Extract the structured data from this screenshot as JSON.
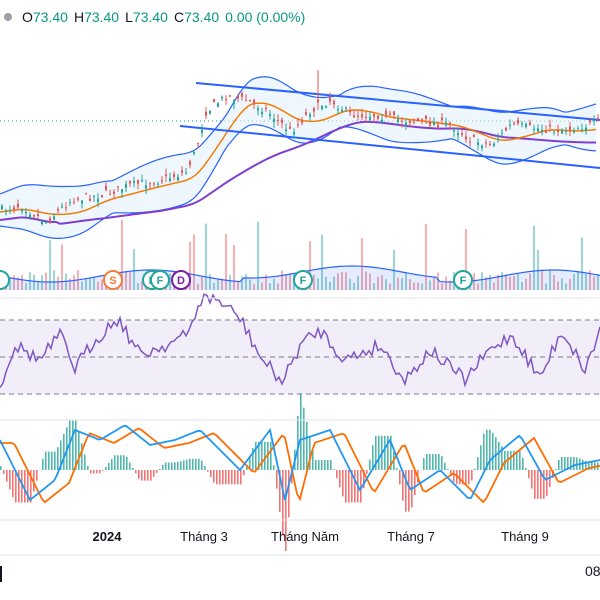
{
  "ohlc": {
    "open_label": "O",
    "open": "73.40",
    "high_label": "H",
    "high": "73.40",
    "low_label": "L",
    "low": "73.40",
    "close_label": "C",
    "close": "73.40",
    "change": "0.00 (0.00%)",
    "up_color": "#089981"
  },
  "x_axis": {
    "ticks": [
      "2024",
      "Tháng 3",
      "Tháng Năm",
      "Tháng 7",
      "Tháng 9"
    ],
    "bold_tick": "2024"
  },
  "crosshair_date_partial": "08",
  "event_markers": [
    {
      "letter": "S",
      "color": "#f57c3a"
    },
    {
      "letter": "F",
      "color": "#26a69a"
    },
    {
      "letter": "F",
      "color": "#26a69a"
    },
    {
      "letter": "D",
      "color": "#7b1fa2"
    },
    {
      "letter": "F",
      "color": "#26a69a"
    },
    {
      "letter": "F",
      "color": "#26a69a"
    }
  ],
  "chart_data": [
    {
      "type": "candlestick",
      "title": "",
      "indicators": [
        "Bollinger Bands",
        "Moving averages",
        "Trend channel",
        "Volume"
      ],
      "x": [
        "2024",
        "Tháng 3",
        "Tháng Năm",
        "Tháng 7",
        "Tháng 9"
      ],
      "last_close": 73.4,
      "colors": {
        "up": "#26a69a",
        "down": "#ef5350",
        "bb": "#2962ff",
        "ma_fast": "#f57c00",
        "ma_slow": "#7e3fd0"
      }
    },
    {
      "type": "line",
      "title": "",
      "indicator": "RSI",
      "bands": [
        "upper",
        "middle",
        "lower"
      ],
      "colors": {
        "line": "#7e57c2",
        "band_fill": "#ede7f6"
      }
    },
    {
      "type": "bar",
      "title": "",
      "indicator": "MACD",
      "colors": {
        "macd": "#2196f3",
        "signal": "#ff6d00",
        "hist_up": "#26a69a",
        "hist_down": "#ef5350"
      }
    }
  ]
}
